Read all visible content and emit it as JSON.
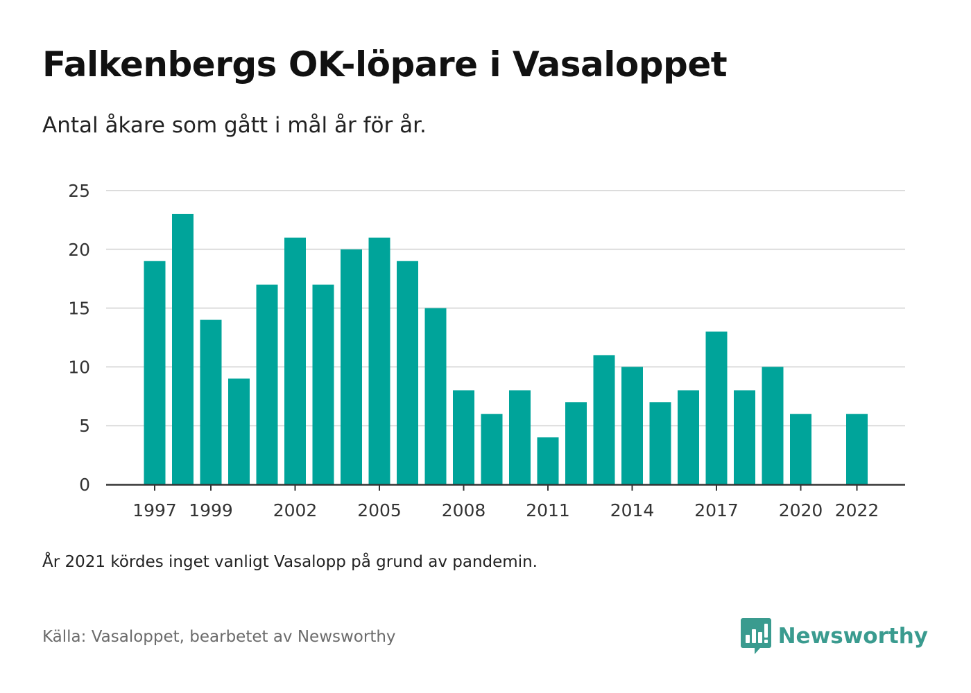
{
  "header": {
    "title": "Falkenbergs OK-löpare i Vasaloppet",
    "subtitle": "Antal åkare som gått i mål år för år."
  },
  "footer": {
    "note": "År 2021 kördes inget vanligt Vasalopp på grund av pandemin.",
    "source": "Källa: Vasaloppet, bearbetet av Newsworthy",
    "brand": "Newsworthy",
    "brand_icon": "newsworthy-logo-icon"
  },
  "colors": {
    "bar": "#00a49a",
    "grid": "#dcdcdc",
    "axis": "#333333",
    "brand": "#3a9b8f"
  },
  "chart_data": {
    "type": "bar",
    "x": [
      1997,
      1998,
      1999,
      2000,
      2001,
      2002,
      2003,
      2004,
      2005,
      2006,
      2007,
      2008,
      2009,
      2010,
      2011,
      2012,
      2013,
      2014,
      2015,
      2016,
      2017,
      2018,
      2019,
      2020,
      2022
    ],
    "values": [
      19,
      23,
      14,
      9,
      17,
      21,
      17,
      20,
      21,
      19,
      15,
      8,
      6,
      8,
      4,
      7,
      11,
      10,
      7,
      8,
      13,
      8,
      10,
      6,
      6
    ],
    "x_tick_labels": [
      "1997",
      "1999",
      "2002",
      "2005",
      "2008",
      "2011",
      "2014",
      "2017",
      "2020",
      "2022"
    ],
    "y_ticks": [
      0,
      5,
      10,
      15,
      20,
      25
    ],
    "ylim": [
      0,
      25
    ],
    "xlabel": "",
    "ylabel": "",
    "grid": true,
    "legend": "none"
  }
}
